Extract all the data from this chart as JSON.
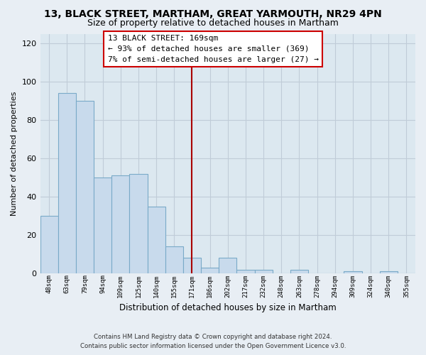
{
  "title": "13, BLACK STREET, MARTHAM, GREAT YARMOUTH, NR29 4PN",
  "subtitle": "Size of property relative to detached houses in Martham",
  "xlabel": "Distribution of detached houses by size in Martham",
  "ylabel": "Number of detached properties",
  "bar_labels": [
    "48sqm",
    "63sqm",
    "79sqm",
    "94sqm",
    "109sqm",
    "125sqm",
    "140sqm",
    "155sqm",
    "171sqm",
    "186sqm",
    "202sqm",
    "217sqm",
    "232sqm",
    "248sqm",
    "263sqm",
    "278sqm",
    "294sqm",
    "309sqm",
    "324sqm",
    "340sqm",
    "355sqm"
  ],
  "bar_values": [
    30,
    94,
    90,
    50,
    51,
    52,
    35,
    14,
    8,
    3,
    8,
    2,
    2,
    0,
    2,
    0,
    0,
    1,
    0,
    1,
    0
  ],
  "bar_color": "#c8daec",
  "bar_edge_color": "#7aaac8",
  "vline_index": 8,
  "vline_color": "#aa0000",
  "ylim": [
    0,
    125
  ],
  "yticks": [
    0,
    20,
    40,
    60,
    80,
    100,
    120
  ],
  "annotation_title": "13 BLACK STREET: 169sqm",
  "annotation_line1": "← 93% of detached houses are smaller (369)",
  "annotation_line2": "7% of semi-detached houses are larger (27) →",
  "annotation_box_facecolor": "#ffffff",
  "annotation_box_edgecolor": "#cc0000",
  "footnote1": "Contains HM Land Registry data © Crown copyright and database right 2024.",
  "footnote2": "Contains public sector information licensed under the Open Government Licence v3.0.",
  "fig_facecolor": "#e8eef4",
  "ax_facecolor": "#dce8f0",
  "grid_color": "#c0ccd8",
  "title_fontsize": 10,
  "subtitle_fontsize": 9
}
